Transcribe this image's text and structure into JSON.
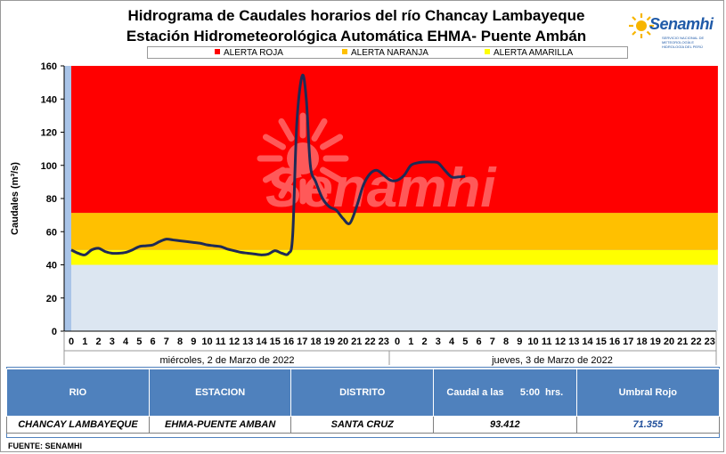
{
  "header": {
    "title_line1": "Hidrograma de Caudales horarios del río Chancay Lambayeque",
    "title_line2": "Estación Hidrometeorológica Automática EHMA- Puente Ambán",
    "logo_text": "Senamhi",
    "logo_subtext": "SERVICIO NACIONAL DE METEOROLOGÍA E HIDROLOGÍA DEL PERÚ"
  },
  "legend": [
    {
      "label": "ALERTA ROJA",
      "color": "#ff0000"
    },
    {
      "label": "ALERTA NARANJA",
      "color": "#ffc000"
    },
    {
      "label": "ALERTA AMARILLA",
      "color": "#ffff00"
    }
  ],
  "chart_data": {
    "type": "line",
    "ylabel": "Caudales (m³/s)",
    "ylim": [
      0,
      160
    ],
    "yticks": [
      0,
      20,
      40,
      60,
      80,
      100,
      120,
      140,
      160
    ],
    "x_tick_labels": [
      "0",
      "1",
      "2",
      "3",
      "4",
      "5",
      "6",
      "7",
      "8",
      "9",
      "10",
      "11",
      "12",
      "13",
      "14",
      "15",
      "16",
      "17",
      "18",
      "19",
      "20",
      "21",
      "22",
      "23",
      "0",
      "1",
      "2",
      "3",
      "4",
      "5",
      "6",
      "7",
      "8",
      "9",
      "10",
      "11",
      "12",
      "13",
      "14",
      "15",
      "16",
      "17",
      "18",
      "19",
      "20",
      "21",
      "22",
      "23"
    ],
    "day_labels": [
      "miércoles, 2 de Marzo de 2022",
      "jueves, 3 de Marzo de 2022"
    ],
    "thresholds": [
      {
        "name": "ALERTA AMARILLA",
        "from": 40,
        "to": 49,
        "color": "#ffff00"
      },
      {
        "name": "ALERTA NARANJA",
        "from": 49,
        "to": 71.355,
        "color": "#ffc000"
      },
      {
        "name": "ALERTA ROJA",
        "from": 71.355,
        "to": 160,
        "color": "#ff0000"
      }
    ],
    "below_color": "#dce6f1",
    "watermark": "Senamhi",
    "series": [
      {
        "line_color": "#1f2a55",
        "x": [
          0,
          0.5,
          1,
          1.5,
          2,
          2.5,
          3,
          3.5,
          4,
          4.5,
          5,
          5.5,
          6,
          6.5,
          7,
          7.5,
          8,
          8.5,
          9,
          9.5,
          10,
          10.5,
          11,
          11.5,
          12,
          12.5,
          13,
          13.5,
          14,
          14.5,
          15,
          15.5,
          16,
          16.3,
          16.6,
          17,
          17.3,
          17.6,
          18,
          18.5,
          19,
          19.5,
          20,
          20.5,
          21,
          21.5,
          22,
          22.5,
          23,
          23.5,
          24,
          24.5,
          25,
          25.5,
          26,
          26.5,
          27,
          27.5,
          28,
          28.5,
          29
        ],
        "y": [
          49,
          47,
          46,
          49,
          50,
          48,
          47,
          47,
          47.5,
          49,
          51,
          51.5,
          52,
          54,
          55.5,
          55,
          54.5,
          54,
          53.5,
          53,
          52,
          51.5,
          51,
          49.5,
          48.5,
          47.5,
          47,
          46.5,
          46,
          46.5,
          48.5,
          47,
          47,
          58,
          125,
          154,
          140,
          100,
          90,
          80,
          75,
          73,
          68,
          65,
          75,
          88,
          95,
          97,
          94,
          91,
          91,
          94,
          100,
          101.5,
          102,
          102,
          101.5,
          97,
          93,
          93,
          93.412
        ]
      }
    ]
  },
  "table": {
    "headers": [
      "RIO",
      "ESTACION",
      "DISTRITO",
      "Caudal a las      5:00  hrs.",
      "Umbral Rojo"
    ],
    "row": [
      "CHANCAY LAMBAYEQUE",
      "EHMA-PUENTE AMBAN",
      "SANTA CRUZ",
      "93.412",
      "71.355"
    ]
  },
  "footer": {
    "source": "FUENTE:  SENAMHI"
  }
}
